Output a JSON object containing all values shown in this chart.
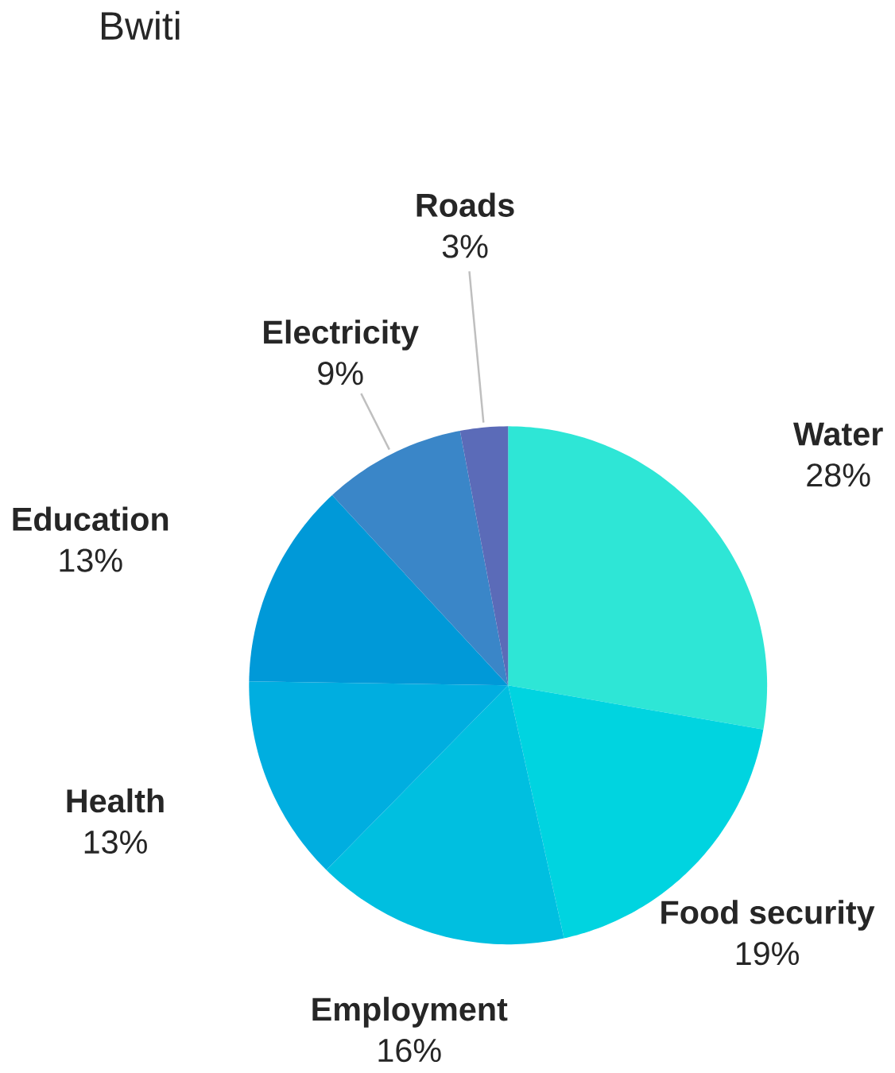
{
  "chart_data": {
    "type": "pie",
    "title": "Bwiti",
    "categories": [
      "Water",
      "Food security",
      "Employment",
      "Health",
      "Education",
      "Electricity",
      "Roads"
    ],
    "values": [
      28,
      19,
      16,
      13,
      13,
      9,
      3
    ],
    "colors": [
      "#2ee6d6",
      "#00d4e0",
      "#00bfe0",
      "#00aee0",
      "#0099d8",
      "#3a86c8",
      "#5b6bb8"
    ],
    "value_labels": [
      "28%",
      "19%",
      "16%",
      "13%",
      "13%",
      "9%",
      "3%"
    ]
  }
}
